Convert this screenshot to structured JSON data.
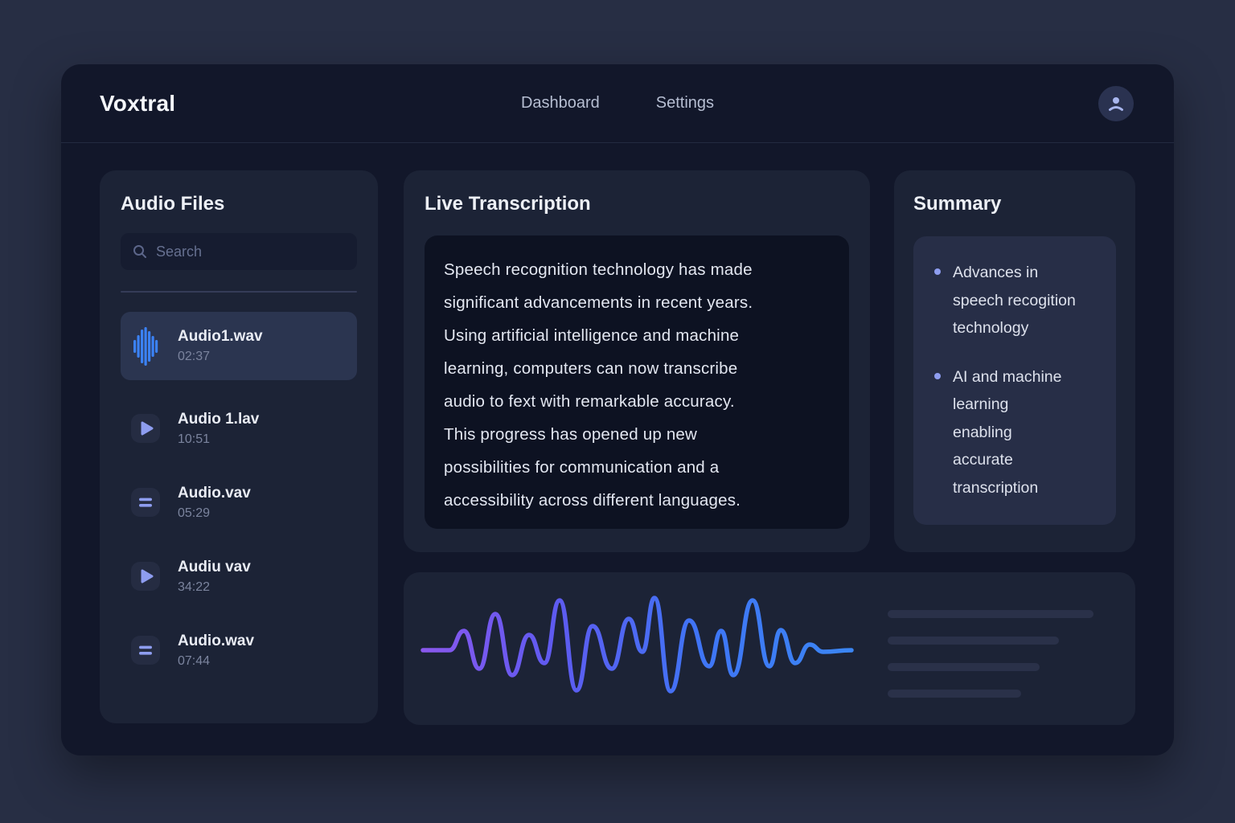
{
  "header": {
    "brand": "Voxtral",
    "nav": [
      "Dashboard",
      "Settings"
    ]
  },
  "sidebar": {
    "title": "Audio Files",
    "search": {
      "placeholder": "Search"
    },
    "files": [
      {
        "name": "Audio1.wav",
        "duration": "02:37",
        "icon": "waveform",
        "selected": true
      },
      {
        "name": "Audio 1.lav",
        "duration": "10:51",
        "icon": "play",
        "selected": false
      },
      {
        "name": "Audio.vav",
        "duration": "05:29",
        "icon": "lines",
        "selected": false
      },
      {
        "name": "Audiu vav",
        "duration": "34:22",
        "icon": "play",
        "selected": false
      },
      {
        "name": "Audio.wav",
        "duration": "07:44",
        "icon": "lines",
        "selected": false
      }
    ]
  },
  "transcription": {
    "title": "Live Transcription",
    "lines": [
      "Speech recognition technology has made",
      "significant advancements in recent years.",
      "Using artificial intelligence and machine",
      "learning, computers can now transcribe",
      "audio to fext with remarkable accuracy.",
      "This progress has opened up new",
      "possibilities for communication and a",
      "accessibility across different languages."
    ]
  },
  "summary": {
    "title": "Summary",
    "bullets": [
      [
        "Advances in",
        "speech recogition",
        "technology"
      ],
      [
        "AI and machine",
        "learning",
        "enabling",
        "accurate",
        "transcription"
      ]
    ]
  },
  "waveform": {
    "gradient": [
      "#8a58ee",
      "#5f5af0",
      "#3f75f5",
      "#3b86f4"
    ],
    "points": [
      [
        12,
        82
      ],
      [
        45,
        82
      ],
      [
        63,
        58
      ],
      [
        82,
        105
      ],
      [
        102,
        37
      ],
      [
        123,
        113
      ],
      [
        144,
        63
      ],
      [
        163,
        98
      ],
      [
        182,
        20
      ],
      [
        203,
        132
      ],
      [
        223,
        52
      ],
      [
        247,
        105
      ],
      [
        268,
        43
      ],
      [
        285,
        84
      ],
      [
        300,
        17
      ],
      [
        320,
        133
      ],
      [
        343,
        45
      ],
      [
        368,
        102
      ],
      [
        383,
        58
      ],
      [
        398,
        113
      ],
      [
        422,
        20
      ],
      [
        443,
        102
      ],
      [
        457,
        57
      ],
      [
        475,
        98
      ],
      [
        493,
        75
      ],
      [
        510,
        84
      ],
      [
        545,
        82
      ]
    ]
  },
  "skeleton_bar_widths": [
    256,
    213,
    189,
    166
  ],
  "colors": {
    "accent_blue": "#3b82f6",
    "accent_lavender": "#8e9df0",
    "icon_tile": "#252c42"
  }
}
